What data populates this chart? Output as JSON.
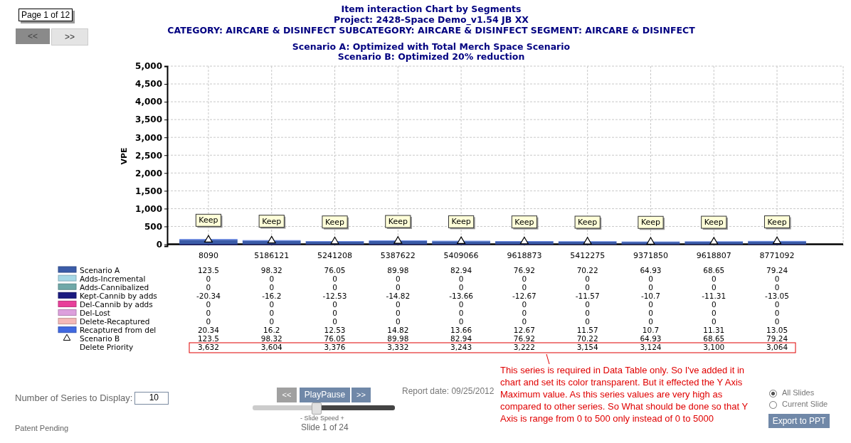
{
  "chart_data": {
    "type": "bar",
    "stacked": true,
    "title": "Item interaction Chart by Segments",
    "subtitle": "Project: 2428-Space Demo_v1.54 JB  XX",
    "ylabel": "VPE",
    "categories": [
      "8090",
      "5186121",
      "5241208",
      "5387622",
      "5409066",
      "9618873",
      "5412275",
      "9371850",
      "9618807",
      "8771092"
    ],
    "series": [
      {
        "name": "Scenario A",
        "color": "#3b5ca8",
        "values": [
          123.5,
          98.32,
          76.05,
          89.98,
          82.94,
          76.92,
          70.22,
          64.93,
          68.65,
          79.24
        ]
      },
      {
        "name": "Adds-Incremental",
        "color": "#a6d8e6",
        "values": [
          0,
          0,
          0,
          0,
          0,
          0,
          0,
          0,
          0,
          0
        ]
      },
      {
        "name": "Adds-Cannibalized",
        "color": "#6fa8a8",
        "values": [
          0,
          0,
          0,
          0,
          0,
          0,
          0,
          0,
          0,
          0
        ]
      },
      {
        "name": "Kept-Cannib by adds",
        "color": "#1a1a80",
        "values": [
          -20.34,
          -16.2,
          -12.53,
          -14.82,
          -13.66,
          -12.67,
          -11.57,
          -10.7,
          -11.31,
          -13.05
        ]
      },
      {
        "name": "Del-Cannib by adds",
        "color": "#e8409a",
        "values": [
          0,
          0,
          0,
          0,
          0,
          0,
          0,
          0,
          0,
          0
        ]
      },
      {
        "name": "Del-Lost",
        "color": "#dda0dd",
        "values": [
          0,
          0,
          0,
          0,
          0,
          0,
          0,
          0,
          0,
          0
        ]
      },
      {
        "name": "Delete-Recaptured",
        "color": "#f4b8b8",
        "values": [
          0,
          0,
          0,
          0,
          0,
          0,
          0,
          0,
          0,
          0
        ]
      },
      {
        "name": "Recaptured from del",
        "color": "#4169e1",
        "values": [
          20.34,
          16.2,
          12.53,
          14.82,
          13.66,
          12.67,
          11.57,
          10.7,
          11.31,
          13.05
        ]
      },
      {
        "name": "Scenario B",
        "type": "scatter",
        "marker": "triangle",
        "color": "#000000",
        "values": [
          123.5,
          98.32,
          76.05,
          89.98,
          82.94,
          76.92,
          70.22,
          64.93,
          68.65,
          79.24
        ]
      }
    ],
    "ylim": [
      -50,
      5000
    ],
    "yticks": [
      {
        "value": 0,
        "label": "0"
      },
      {
        "value": 500,
        "label": "500"
      },
      {
        "value": 1000,
        "label": "1,000"
      },
      {
        "value": 1500,
        "label": "1,500"
      },
      {
        "value": 2000,
        "label": "2,000"
      },
      {
        "value": 2500,
        "label": "2,500"
      },
      {
        "value": 3000,
        "label": "3,000"
      },
      {
        "value": 3500,
        "label": "3,500"
      },
      {
        "value": 4000,
        "label": "4,000"
      },
      {
        "value": 4500,
        "label": "4,500"
      },
      {
        "value": 5000,
        "label": "5,000"
      }
    ],
    "grid": true,
    "legend": "bottom left",
    "data_labels": true,
    "annotations": [
      "CATEGORY: AIRCARE & DISINFECT SUBCATEGORY: AIRCARE & DISINFECT SEGMENT: AIRCARE & DISINFECT",
      "Scenario A: Optimized with Total Merch Space Scenario",
      "Scenario B: Optimized 20% reduction",
      "This series is required in Data Table only. So I've added it in chart and set its color transparent. But it effected the Y Axis Maximum value. As this series values are very high as compared to other series. So What should be done so that Y Axis is range from 0 to 500 only instead of 0 to 5000",
      "Page 1 of 12",
      "<<",
      ">>",
      "Number of Series to Display:",
      "10",
      "<<",
      "PlayPause",
      ">>",
      "- Slide Speed +",
      "Slide 1 of 24",
      "Report date: 09/25/2012",
      "All Slides",
      "Current Slide",
      "Export to PPT",
      "Patent Pending",
      "Delete Priority",
      "3,632",
      "3,604",
      "3,376",
      "3,332",
      "3,243",
      "3,222",
      "3,154",
      "3,124",
      "3,100",
      "3,064",
      {
        "text": "Keep",
        "x": "8090",
        "y": 123.5
      },
      {
        "text": "Keep",
        "x": "5186121",
        "y": 98.32
      },
      {
        "text": "Keep",
        "x": "5241208",
        "y": 76.05
      },
      {
        "text": "Keep",
        "x": "5387622",
        "y": 89.98
      },
      {
        "text": "Keep",
        "x": "5409066",
        "y": 82.94
      },
      {
        "text": "Keep",
        "x": "9618873",
        "y": 76.92
      },
      {
        "text": "Keep",
        "x": "5412275",
        "y": 70.22
      },
      {
        "text": "Keep",
        "x": "9371850",
        "y": 64.93
      },
      {
        "text": "Keep",
        "x": "9618807",
        "y": 68.65
      },
      {
        "text": "Keep",
        "x": "8771092",
        "y": 79.24
      }
    ]
  }
}
